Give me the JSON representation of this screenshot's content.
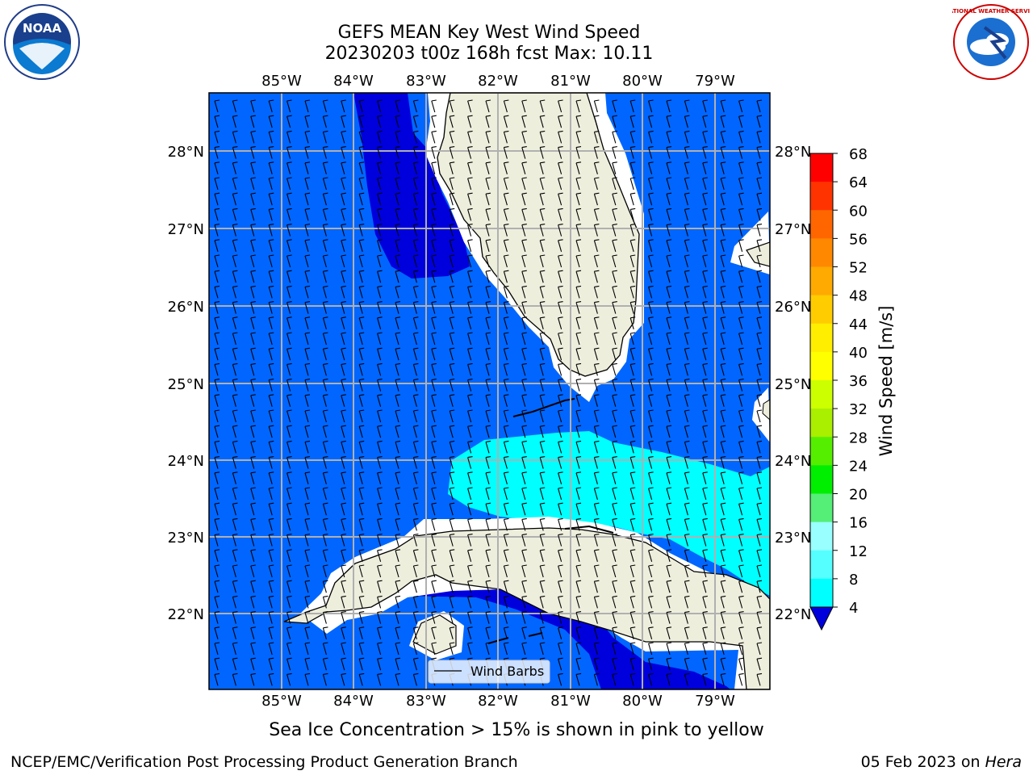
{
  "title": {
    "line1": "GEFS MEAN Key West Wind Speed",
    "line2": "20230203 t00z 168h fcst   Max: 10.11"
  },
  "map": {
    "lon_ticks": [
      "85°W",
      "84°W",
      "83°W",
      "82°W",
      "81°W",
      "80°W",
      "79°W"
    ],
    "lat_ticks": [
      "28°N",
      "27°N",
      "26°N",
      "25°N",
      "24°N",
      "23°N",
      "22°N"
    ],
    "legend_label": "Wind Barbs",
    "colors": {
      "ocean_4_8": "#0066ff",
      "ocean_0_4": "#0000dd",
      "ocean_8_12": "#00ffff",
      "land": "#eeeedd",
      "grid": "#b0b0b0"
    }
  },
  "colorbar": {
    "label": "Wind Speed [m/s]",
    "ticks": [
      "68",
      "64",
      "60",
      "56",
      "52",
      "48",
      "44",
      "40",
      "36",
      "32",
      "28",
      "24",
      "20",
      "16",
      "12",
      "8",
      "4"
    ],
    "colors": [
      "#ff0000",
      "#ff3300",
      "#ff6600",
      "#ff8800",
      "#ffaa00",
      "#ffcc00",
      "#ffee00",
      "#ffff00",
      "#ccff00",
      "#aaee00",
      "#55ee00",
      "#00ee00",
      "#55ee77",
      "#99ffff",
      "#55ffff",
      "#00ffff",
      "#0066ff"
    ]
  },
  "footer": {
    "sea_ice": "Sea Ice Concentration > 15% is shown in pink to yellow",
    "branch": "NCEP/EMC/Verification Post Processing Product Generation Branch",
    "date": "05 Feb 2023 on ",
    "host": "Hera"
  },
  "logos": {
    "left": "noaa-logo",
    "right": "nws-logo",
    "left_text": "NOAA",
    "right_text": "NATIONAL WEATHER SERVICE"
  }
}
